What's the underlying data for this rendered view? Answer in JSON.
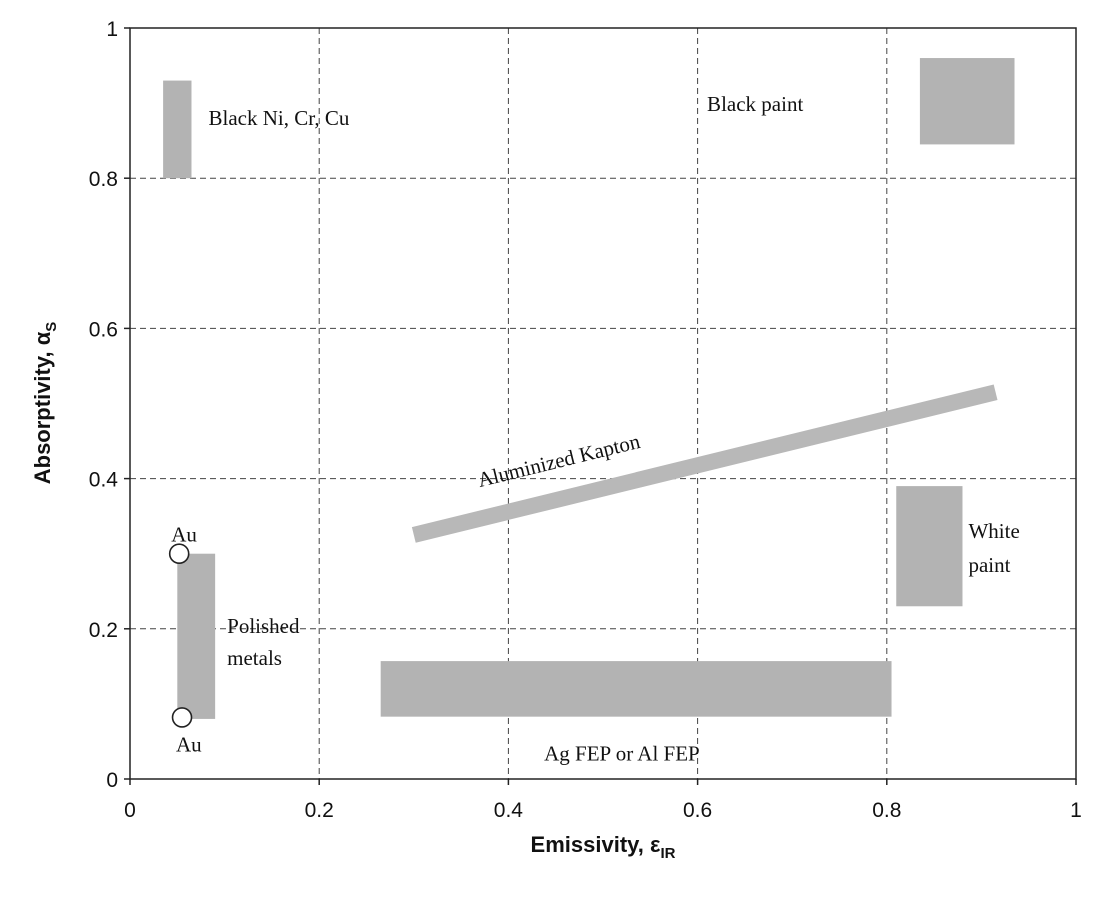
{
  "chart_data": {
    "type": "scatter",
    "xlabel": "Emissivity, ",
    "xlabel_symbol": "ε",
    "xlabel_sub": "IR",
    "ylabel": "Absorptivity, ",
    "ylabel_symbol": "α",
    "ylabel_sub": "S",
    "xlim": [
      0,
      1
    ],
    "ylim": [
      0,
      1
    ],
    "grid": true,
    "x_ticks": [
      "0",
      "0.2",
      "0.4",
      "0.6",
      "0.8",
      "1"
    ],
    "y_ticks": [
      "0",
      "0.2",
      "0.4",
      "0.6",
      "0.8",
      "1"
    ],
    "regions": [
      {
        "shape": "rect",
        "x": [
          0.035,
          0.065
        ],
        "y": [
          0.8,
          0.93
        ],
        "label": [
          "Black Ni, Cr, Cu"
        ],
        "color": "#aaaaaa"
      },
      {
        "shape": "rect",
        "x": [
          0.835,
          0.935
        ],
        "y": [
          0.845,
          0.96
        ],
        "label": [
          "Black paint"
        ],
        "color": "#aaaaaa"
      },
      {
        "shape": "band",
        "from": [
          0.3,
          0.325
        ],
        "to": [
          0.915,
          0.515
        ],
        "label": [
          "Aluminized Kapton"
        ],
        "color": "#b8b8b8"
      },
      {
        "shape": "rect",
        "x": [
          0.81,
          0.88
        ],
        "y": [
          0.23,
          0.39
        ],
        "label": [
          "White",
          "paint"
        ],
        "color": "#b3b3b3"
      },
      {
        "shape": "rect",
        "x": [
          0.05,
          0.09
        ],
        "y": [
          0.08,
          0.3
        ],
        "label": [
          "Polished",
          "metals"
        ],
        "color": "#aaaaaa"
      },
      {
        "shape": "rect",
        "x": [
          0.265,
          0.805
        ],
        "y": [
          0.083,
          0.157
        ],
        "label": [
          "Ag FEP or Al FEP"
        ],
        "color": "#aaaaaa"
      }
    ],
    "points": [
      {
        "x": 0.052,
        "y": 0.3,
        "label": "Au"
      },
      {
        "x": 0.055,
        "y": 0.082,
        "label": "Au"
      }
    ]
  }
}
